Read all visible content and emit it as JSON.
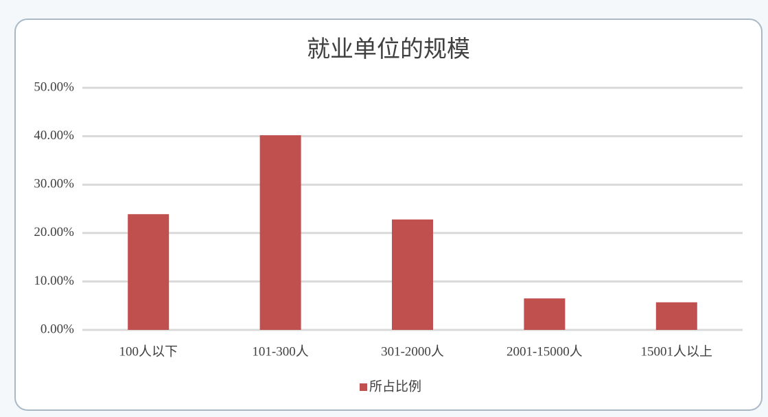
{
  "chart_data": {
    "type": "bar",
    "title": "就业单位的规模",
    "categories": [
      "100人以下",
      "101-300人",
      "301-2000人",
      "2001-15000人",
      "15001人以上"
    ],
    "series": [
      {
        "name": "所占比例",
        "color": "#c0504d",
        "values": [
          23.9,
          40.2,
          22.8,
          6.5,
          5.7
        ]
      }
    ],
    "ylim": [
      0,
      50
    ],
    "yticks": [
      {
        "value": 0,
        "label": "0.00%"
      },
      {
        "value": 10,
        "label": "10.00%"
      },
      {
        "value": 20,
        "label": "20.00%"
      },
      {
        "value": 30,
        "label": "30.00%"
      },
      {
        "value": 40,
        "label": "40.00%"
      },
      {
        "value": 50,
        "label": "50.00%"
      }
    ],
    "grid": true,
    "legend": "bottom"
  }
}
